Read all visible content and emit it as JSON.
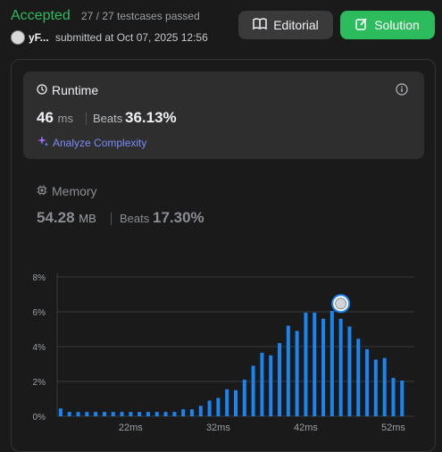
{
  "header": {
    "status": "Accepted",
    "testcases": "27 / 27 testcases passed",
    "user": "yF...",
    "submitted": "submitted at Oct 07, 2025 12:56",
    "editorial_label": "Editorial",
    "solution_label": "Solution"
  },
  "runtime": {
    "title": "Runtime",
    "value": "46",
    "unit": "ms",
    "beats_label": "Beats",
    "beats_value": "36.13%",
    "analyze_label": "Analyze Complexity"
  },
  "memory": {
    "title": "Memory",
    "value": "54.28",
    "unit": "MB",
    "beats_label": "Beats",
    "beats_value": "17.30%"
  },
  "colors": {
    "accent_green": "#2cbb5d",
    "bar_blue": "#1a84f0"
  },
  "chart_data": {
    "type": "bar",
    "y_ticks": [
      "8%",
      "6%",
      "4%",
      "2%",
      "0%"
    ],
    "ylim": [
      0,
      8
    ],
    "x_tick_labels": [
      "22ms",
      "32ms",
      "42ms",
      "52ms"
    ],
    "x_tick_values": [
      22,
      32,
      42,
      52
    ],
    "x": [
      14,
      15,
      16,
      17,
      18,
      19,
      20,
      21,
      22,
      23,
      24,
      25,
      26,
      27,
      28,
      29,
      30,
      31,
      32,
      33,
      34,
      35,
      36,
      37,
      38,
      39,
      40,
      41,
      42,
      43,
      44,
      45,
      46,
      47,
      48,
      49,
      50,
      51,
      52,
      53
    ],
    "values": [
      0.45,
      0.25,
      0.25,
      0.25,
      0.25,
      0.25,
      0.25,
      0.25,
      0.25,
      0.25,
      0.25,
      0.25,
      0.25,
      0.25,
      0.4,
      0.4,
      0.6,
      0.9,
      1.05,
      1.55,
      1.5,
      2.1,
      2.9,
      3.65,
      3.5,
      4.2,
      5.2,
      4.9,
      5.95,
      5.95,
      5.6,
      6.05,
      5.6,
      5.15,
      4.45,
      3.85,
      3.25,
      3.35,
      2.2,
      2.05
    ],
    "highlight_x": 46
  }
}
